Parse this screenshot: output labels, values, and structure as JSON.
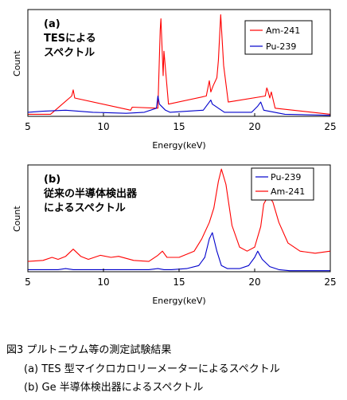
{
  "caption": {
    "title": "図3  プルトニウム等の測定試験結果",
    "line_a": "(a) TES 型マイクロカロリーメーターによるスペクトル",
    "line_b": "(b) Ge 半導体検出器によるスペクトル"
  },
  "chart_data": [
    {
      "type": "line",
      "panel_label": "(a)",
      "annotation": [
        "TESによる",
        "スペクトル"
      ],
      "xlabel": "Energy(keV)",
      "ylabel": "Count",
      "xlim": [
        5,
        25
      ],
      "xticks": [
        "5",
        "10",
        "15",
        "20",
        "25"
      ],
      "grid": false,
      "legend_position": "top-right",
      "series": [
        {
          "name": "Am-241",
          "color": "#ff0000",
          "x": [
            5,
            6.5,
            7.9,
            8.0,
            8.1,
            11.8,
            11.9,
            13.6,
            13.75,
            13.8,
            13.95,
            14.0,
            14.3,
            16.8,
            17.0,
            17.1,
            17.25,
            17.5,
            17.6,
            17.75,
            17.8,
            17.95,
            18.25,
            20.7,
            20.8,
            20.85,
            21.0,
            21.1,
            21.35,
            25
          ],
          "y": [
            2,
            2,
            20,
            26,
            18,
            6,
            9,
            8,
            85,
            96,
            40,
            64,
            12,
            20,
            35,
            24,
            30,
            38,
            55,
            100,
            88,
            50,
            14,
            20,
            28,
            26,
            18,
            24,
            8,
            2
          ]
        },
        {
          "name": "Pu-239",
          "color": "#0000cc",
          "x": [
            5,
            6.0,
            7.5,
            9.3,
            11.5,
            12.7,
            13.5,
            13.6,
            13.7,
            14.1,
            14.4,
            16.6,
            16.8,
            17.0,
            17.1,
            17.2,
            17.4,
            17.6,
            18.0,
            19.8,
            20.2,
            20.4,
            20.6,
            22.0,
            25
          ],
          "y": [
            4,
            5,
            6,
            4,
            3,
            4,
            8,
            20,
            12,
            6,
            4,
            6,
            10,
            14,
            16,
            12,
            10,
            8,
            4,
            4,
            10,
            14,
            6,
            2,
            1
          ]
        }
      ]
    },
    {
      "type": "line",
      "panel_label": "(b)",
      "annotation": [
        "従来の半導体検出器",
        "によるスペクトル"
      ],
      "xlabel": "Energy(keV)",
      "ylabel": "Count",
      "xlim": [
        5,
        25
      ],
      "xticks": [
        "5",
        "10",
        "15",
        "20",
        "25"
      ],
      "grid": false,
      "legend_position": "top-right",
      "series": [
        {
          "name": "Pu-239",
          "color": "#0000cc",
          "x": [
            5,
            6,
            7,
            7.5,
            8,
            9,
            10,
            11,
            12,
            13,
            13.6,
            14,
            14.5,
            15.5,
            16.3,
            16.7,
            17.0,
            17.2,
            17.5,
            17.8,
            18.2,
            19,
            19.6,
            20.0,
            20.2,
            20.5,
            21.0,
            21.6,
            22.3,
            25
          ],
          "y": [
            2,
            2,
            2,
            3,
            2,
            2,
            2,
            2,
            2,
            2,
            3,
            2,
            2,
            3,
            6,
            14,
            32,
            38,
            20,
            6,
            3,
            3,
            6,
            14,
            20,
            12,
            5,
            2,
            1,
            1
          ]
        },
        {
          "name": "Am-241",
          "color": "#ff0000",
          "x": [
            5,
            6,
            6.6,
            7.0,
            7.5,
            8.0,
            8.5,
            9,
            9.8,
            10.5,
            11,
            12,
            13,
            13.6,
            13.9,
            14.2,
            15,
            16,
            16.5,
            17.0,
            17.3,
            17.6,
            17.8,
            18.1,
            18.5,
            19,
            19.5,
            20.0,
            20.4,
            20.6,
            20.9,
            21.2,
            21.6,
            22.2,
            23,
            24,
            25
          ],
          "y": [
            10,
            11,
            14,
            12,
            15,
            22,
            15,
            12,
            16,
            14,
            15,
            11,
            10,
            16,
            20,
            14,
            14,
            20,
            32,
            48,
            62,
            88,
            100,
            85,
            45,
            24,
            20,
            24,
            44,
            66,
            74,
            68,
            48,
            28,
            20,
            18,
            20
          ]
        }
      ]
    }
  ]
}
